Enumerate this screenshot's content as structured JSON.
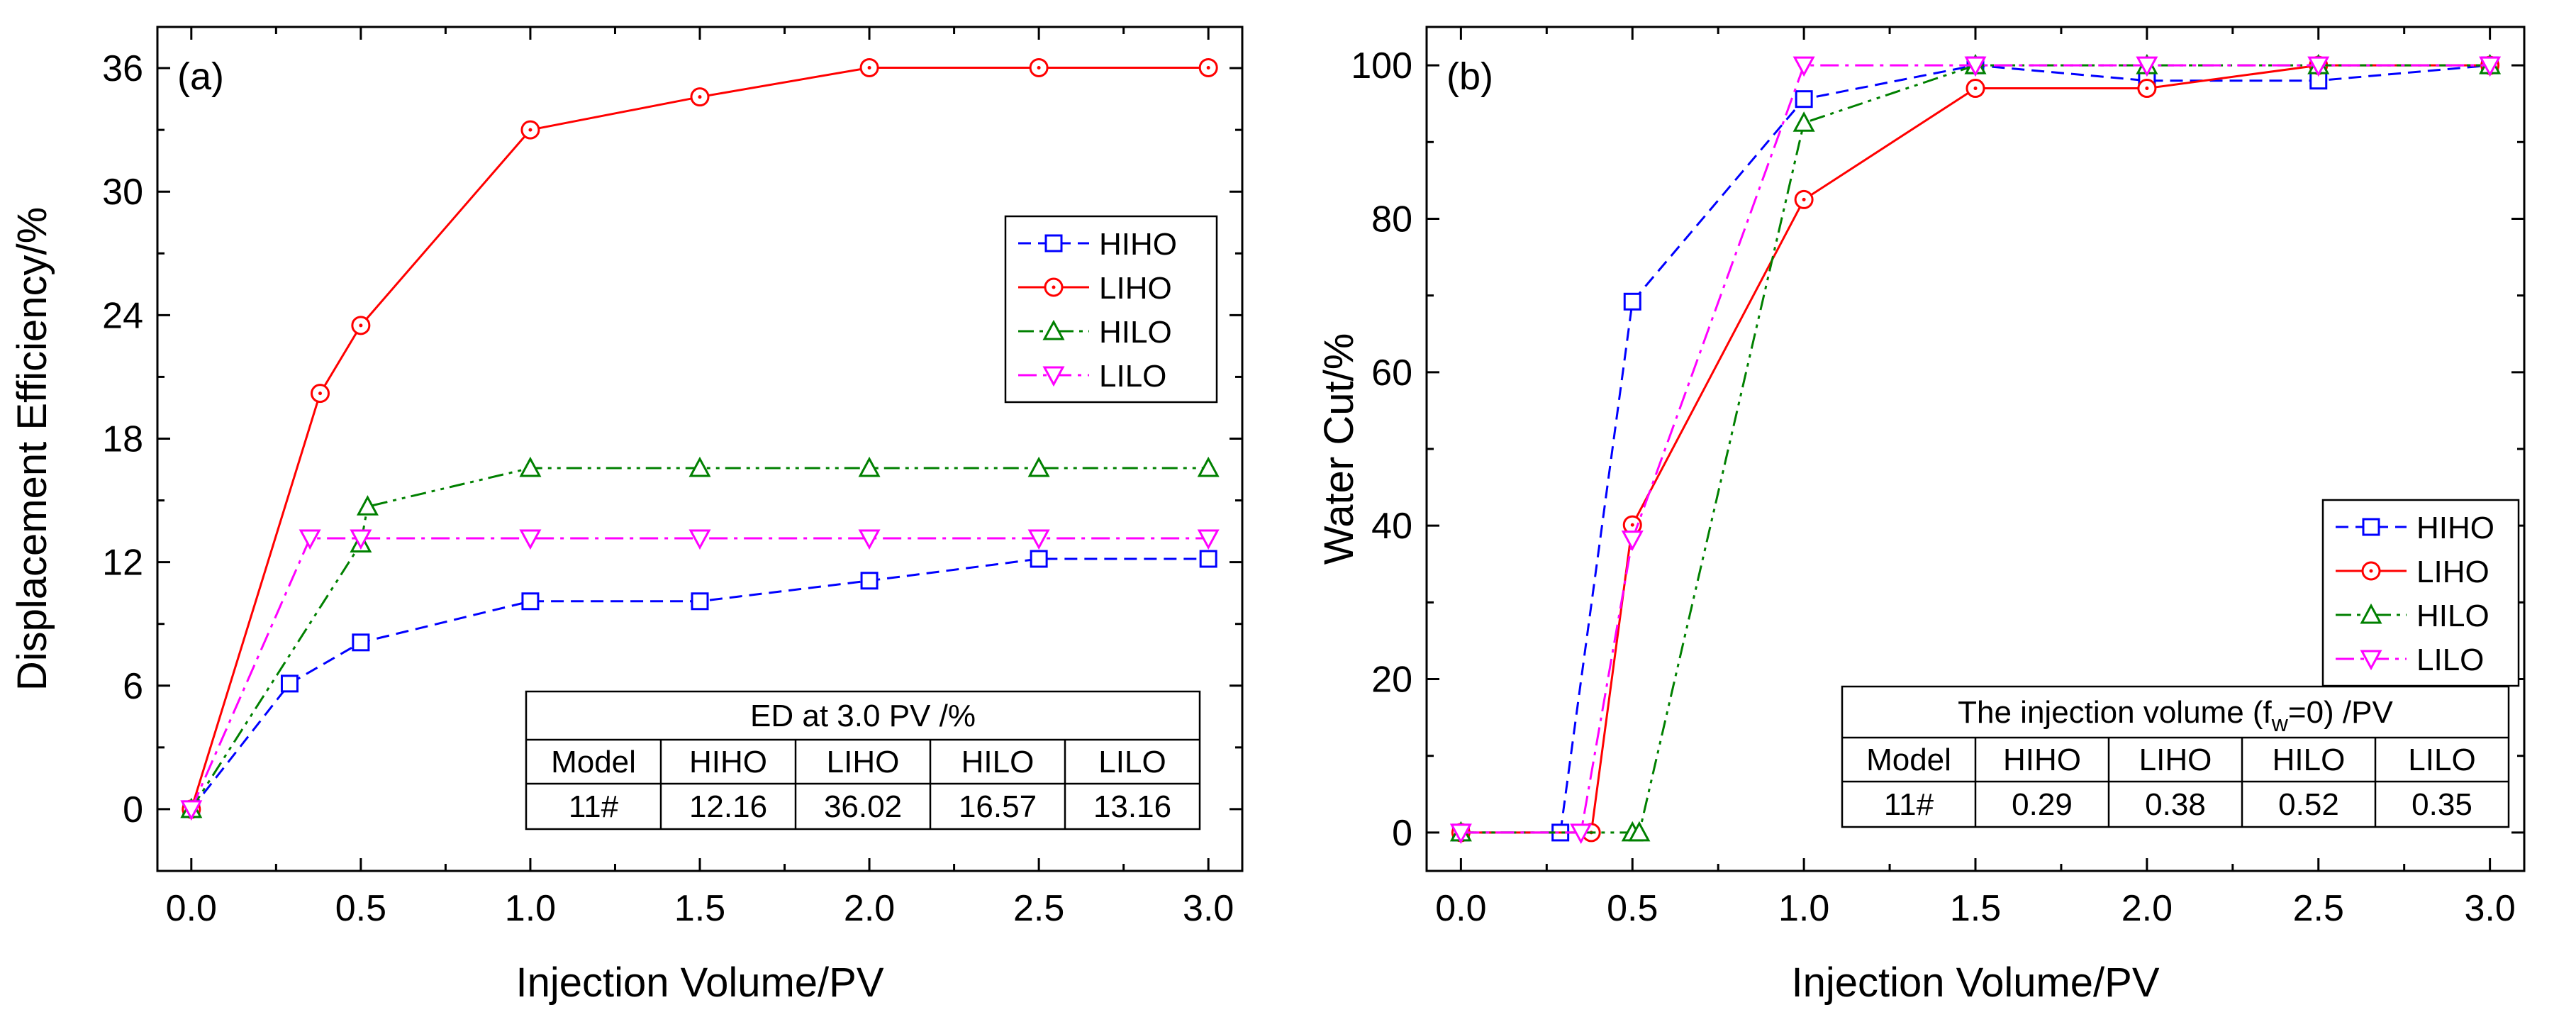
{
  "chart_data": [
    {
      "type": "line",
      "panel_label": "(a)",
      "xlabel": "Injection Volume/PV",
      "ylabel": "Displacement Efficiency/%",
      "xlim": [
        -0.1,
        3.1
      ],
      "ylim": [
        -3,
        38
      ],
      "x_ticks": [
        "0.0",
        "0.5",
        "1.0",
        "1.5",
        "2.0",
        "2.5",
        "3.0"
      ],
      "y_ticks": [
        "0",
        "6",
        "12",
        "18",
        "24",
        "30",
        "36"
      ],
      "legend_position": "middle-right",
      "series": [
        {
          "name": "HIHO",
          "color": "#0000ff",
          "style": "dashed",
          "marker": "square",
          "x": [
            0,
            0.29,
            0.5,
            1.0,
            1.5,
            2.0,
            2.5,
            3.0
          ],
          "y": [
            0,
            6.1,
            8.1,
            10.1,
            10.1,
            11.1,
            12.16,
            12.16
          ]
        },
        {
          "name": "LIHO",
          "color": "#ff0000",
          "style": "solid",
          "marker": "circle",
          "x": [
            0,
            0.38,
            0.5,
            1.0,
            1.5,
            2.0,
            2.5,
            3.0
          ],
          "y": [
            0,
            20.2,
            23.5,
            33.0,
            34.6,
            36.02,
            36.02,
            36.02
          ]
        },
        {
          "name": "HILO",
          "color": "#008000",
          "style": "dashdotdot",
          "marker": "triangle-up",
          "x": [
            0,
            0.5,
            0.52,
            1.0,
            1.5,
            2.0,
            2.5,
            3.0
          ],
          "y": [
            0,
            12.9,
            14.7,
            16.57,
            16.57,
            16.57,
            16.57,
            16.57
          ]
        },
        {
          "name": "LILO",
          "color": "#ff00ff",
          "style": "dashdot",
          "marker": "triangle-down",
          "x": [
            0,
            0.35,
            0.5,
            1.0,
            1.5,
            2.0,
            2.5,
            3.0
          ],
          "y": [
            0,
            13.16,
            13.16,
            13.16,
            13.16,
            13.16,
            13.16,
            13.16
          ]
        }
      ],
      "table": {
        "title": "ED at 3.0 PV /%",
        "header": [
          "Model",
          "HIHO",
          "LIHO",
          "HILO",
          "LILO"
        ],
        "row": [
          "11#",
          "12.16",
          "36.02",
          "16.57",
          "13.16"
        ]
      }
    },
    {
      "type": "line",
      "panel_label": "(b)",
      "xlabel": "Injection Volume/PV",
      "ylabel": "Water Cut/%",
      "xlim": [
        -0.1,
        3.1
      ],
      "ylim": [
        -5,
        105
      ],
      "x_ticks": [
        "0.0",
        "0.5",
        "1.0",
        "1.5",
        "2.0",
        "2.5",
        "3.0"
      ],
      "y_ticks": [
        "0",
        "20",
        "40",
        "60",
        "80",
        "100"
      ],
      "legend_position": "lower-right",
      "series": [
        {
          "name": "HIHO",
          "color": "#0000ff",
          "style": "dashed",
          "marker": "square",
          "x": [
            0,
            0.29,
            0.5,
            1.0,
            1.5,
            2.0,
            2.5,
            3.0
          ],
          "y": [
            0,
            0,
            69.2,
            95.6,
            100,
            98,
            98,
            100
          ]
        },
        {
          "name": "LIHO",
          "color": "#ff0000",
          "style": "solid",
          "marker": "circle",
          "x": [
            0,
            0.38,
            0.5,
            1.0,
            1.5,
            2.0,
            2.5,
            3.0
          ],
          "y": [
            0,
            0,
            40.1,
            82.5,
            97,
            97,
            100,
            100
          ]
        },
        {
          "name": "HILO",
          "color": "#008000",
          "style": "dashdotdot",
          "marker": "triangle-up",
          "x": [
            0,
            0.5,
            0.52,
            1.0,
            1.5,
            2.0,
            2.5,
            3.0
          ],
          "y": [
            0,
            0,
            0,
            92.5,
            100,
            100,
            100,
            100
          ]
        },
        {
          "name": "LILO",
          "color": "#ff00ff",
          "style": "dashdot",
          "marker": "triangle-down",
          "x": [
            0,
            0.35,
            0.5,
            1.0,
            1.5,
            2.0,
            2.5,
            3.0
          ],
          "y": [
            0,
            0,
            38.2,
            100,
            100,
            100,
            100,
            100
          ]
        }
      ],
      "table": {
        "title": "The injection volume (fw=0) /PV",
        "title_parts": {
          "before": "The injection volume (f",
          "sub": "w",
          "after": "=0) /PV"
        },
        "header": [
          "Model",
          "HIHO",
          "LIHO",
          "HILO",
          "LILO"
        ],
        "row": [
          "11#",
          "0.29",
          "0.38",
          "0.52",
          "0.35"
        ]
      }
    }
  ]
}
